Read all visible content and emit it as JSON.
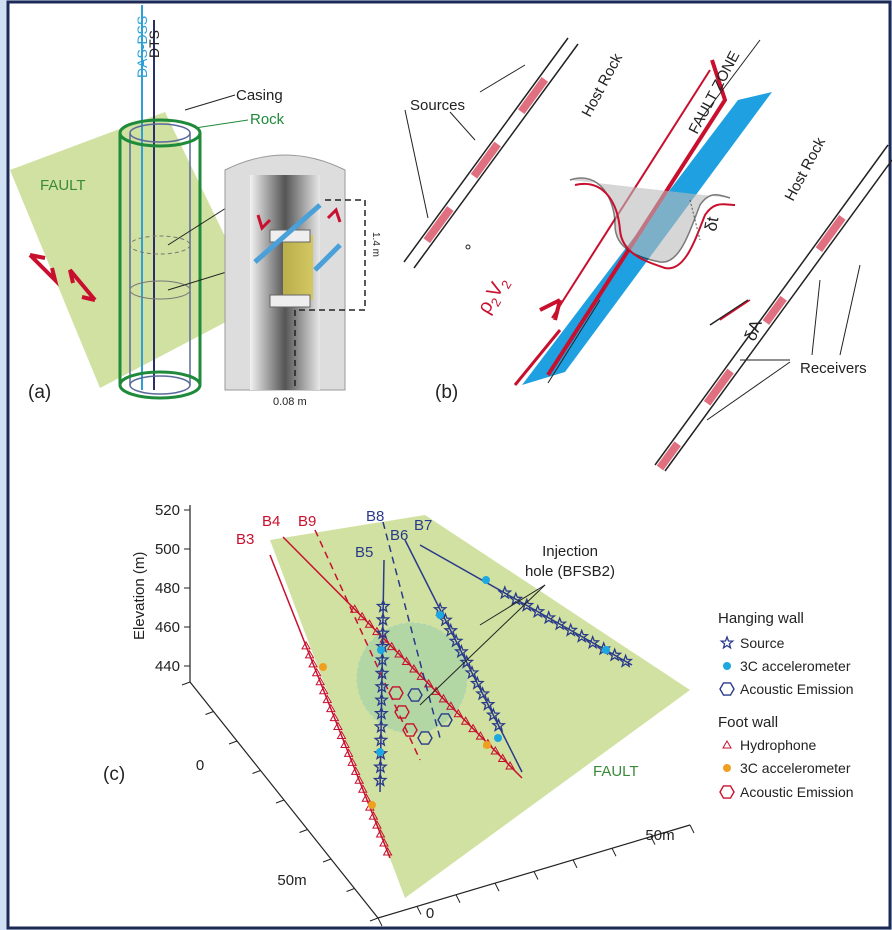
{
  "panel_a": {
    "label": "(a)",
    "das": "DAS-DSS",
    "dts": "DTS",
    "casing": "Casing",
    "rock": "Rock",
    "fault": "FAULT",
    "length": "1.4 m",
    "diameter": "0.08 m"
  },
  "panel_b": {
    "label": "(b)",
    "sources": "Sources",
    "host_rock_left": "Host Rock",
    "fault_zone": "FAULT ZONE",
    "host_rock_right": "Host Rock",
    "delta_t": "δt",
    "delta_a": "δA",
    "rho": "ρ",
    "rho_sub": "2",
    "v": "V",
    "v_sub": "2",
    "receivers": "Receivers"
  },
  "panel_c": {
    "label": "(c)",
    "y_axis_title": "Elevation (m)",
    "elevation_ticks": [
      "520",
      "500",
      "480",
      "460",
      "440"
    ],
    "left_axis_ticks": [
      "0",
      "50m"
    ],
    "bottom_axis_ticks": [
      "0",
      "50m"
    ],
    "boreholes": [
      "B3",
      "B4",
      "B9",
      "B8",
      "B5",
      "B6",
      "B7"
    ],
    "injection": [
      "Injection",
      "hole (BFSB2)"
    ],
    "fault": "FAULT",
    "legend": {
      "hanging_wall": "Hanging wall",
      "hanging_items": [
        "Source",
        "3C accelerometer",
        "Acoustic Emission"
      ],
      "foot_wall": "Foot wall",
      "foot_items": [
        "Hydrophone",
        "3C accelerometer",
        "Acoustic Emission"
      ]
    }
  }
}
